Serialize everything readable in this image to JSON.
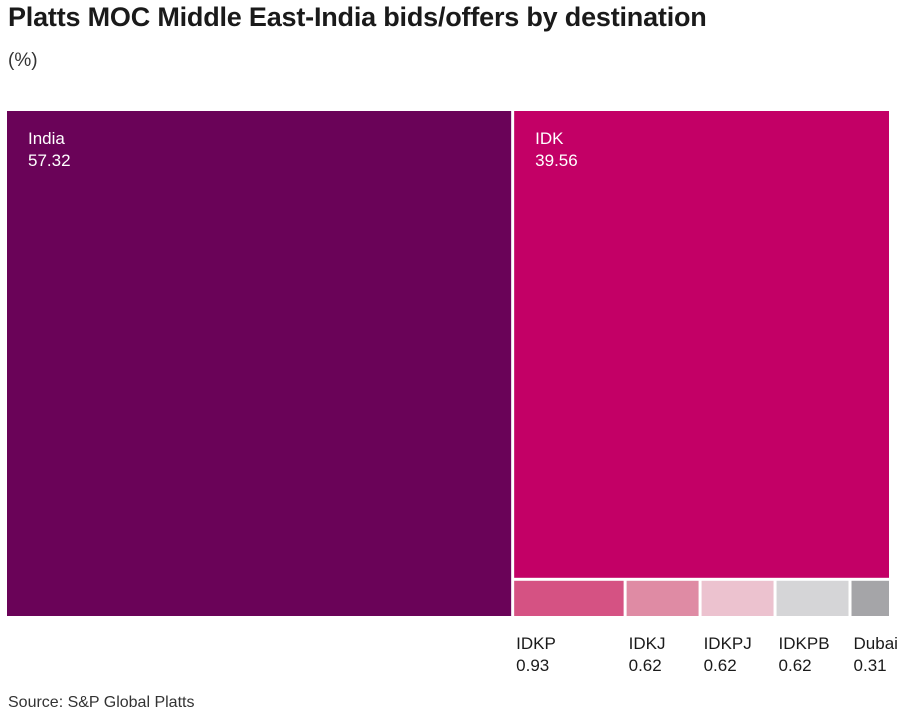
{
  "title": "Platts MOC Middle East-India bids/offers by destination",
  "subtitle": "(%)",
  "source": "Source: S&P Global Platts",
  "chart_data": {
    "type": "treemap",
    "unit": "%",
    "items": [
      {
        "label": "India",
        "value": 57.32,
        "display": "57.32",
        "color": "#6a0358",
        "label_position": "inside"
      },
      {
        "label": "IDK",
        "value": 39.56,
        "display": "39.56",
        "color": "#c30066",
        "label_position": "inside"
      },
      {
        "label": "IDKP",
        "value": 0.93,
        "display": "0.93",
        "color": "#d55283",
        "label_position": "below"
      },
      {
        "label": "IDKJ",
        "value": 0.62,
        "display": "0.62",
        "color": "#df8ba4",
        "label_position": "below"
      },
      {
        "label": "IDKPJ",
        "value": 0.62,
        "display": "0.62",
        "color": "#ecc2cf",
        "label_position": "below"
      },
      {
        "label": "IDKPB",
        "value": 0.62,
        "display": "0.62",
        "color": "#d5d5d7",
        "label_position": "below"
      },
      {
        "label": "Dubai",
        "value": 0.31,
        "display": "0.31",
        "color": "#a5a5a8",
        "label_position": "below"
      }
    ]
  }
}
